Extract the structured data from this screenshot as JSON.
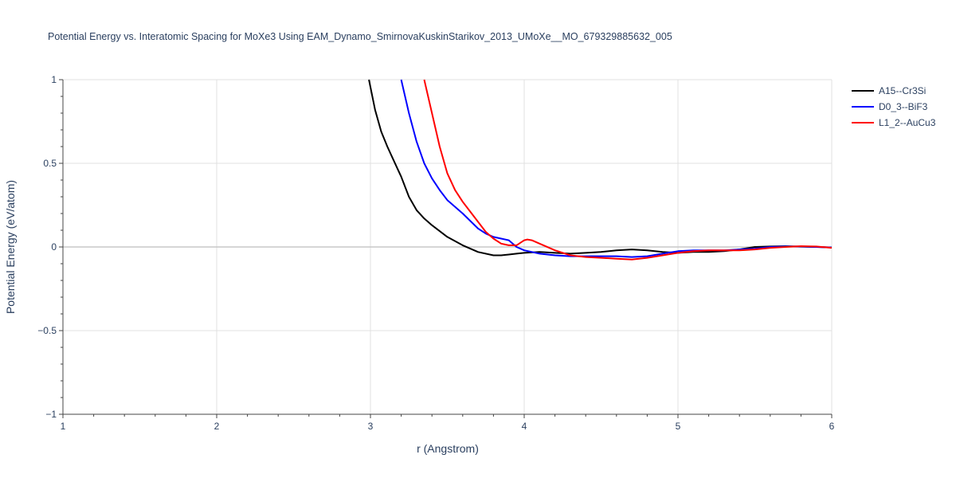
{
  "chart_data": {
    "type": "line",
    "title": "Potential Energy vs. Interatomic Spacing for MoXe3 Using EAM_Dynamo_SmirnovaKuskinStarikov_2013_UMoXe__MO_679329885632_005",
    "xlabel": "r (Angstrom)",
    "ylabel": "Potential Energy (eV/atom)",
    "xlim": [
      1,
      6
    ],
    "ylim": [
      -1,
      1
    ],
    "xticks": [
      1,
      2,
      3,
      4,
      5,
      6
    ],
    "xtick_labels": [
      "1",
      "2",
      "3",
      "4",
      "5",
      "6"
    ],
    "yticks": [
      -1,
      -0.5,
      0,
      0.5,
      1
    ],
    "ytick_labels": [
      "−1",
      "−0.5",
      "0",
      "0.5",
      "1"
    ],
    "grid": true,
    "legend_position": "top-right",
    "series": [
      {
        "name": "A15--Cr3Si",
        "color": "#000000",
        "x": [
          2.99,
          3.03,
          3.07,
          3.11,
          3.15,
          3.2,
          3.25,
          3.3,
          3.35,
          3.4,
          3.5,
          3.6,
          3.7,
          3.8,
          3.85,
          3.9,
          3.95,
          4.0,
          4.1,
          4.2,
          4.3,
          4.4,
          4.5,
          4.6,
          4.7,
          4.8,
          4.9,
          5.0,
          5.1,
          5.2,
          5.3,
          5.4,
          5.5,
          5.6,
          5.7,
          5.8,
          5.9,
          6.0
        ],
        "y": [
          1.0,
          0.82,
          0.69,
          0.6,
          0.52,
          0.42,
          0.3,
          0.22,
          0.17,
          0.13,
          0.06,
          0.01,
          -0.03,
          -0.05,
          -0.05,
          -0.045,
          -0.04,
          -0.035,
          -0.03,
          -0.035,
          -0.04,
          -0.035,
          -0.03,
          -0.02,
          -0.015,
          -0.02,
          -0.03,
          -0.035,
          -0.03,
          -0.03,
          -0.025,
          -0.015,
          0.0,
          0.003,
          0.005,
          0.002,
          0.0,
          -0.003
        ]
      },
      {
        "name": "D0_3--BiF3",
        "color": "#0000ff",
        "x": [
          3.2,
          3.25,
          3.3,
          3.35,
          3.4,
          3.45,
          3.5,
          3.6,
          3.7,
          3.75,
          3.8,
          3.85,
          3.9,
          3.95,
          4.0,
          4.1,
          4.2,
          4.3,
          4.4,
          4.5,
          4.6,
          4.7,
          4.8,
          4.9,
          5.0,
          5.1,
          5.2,
          5.3,
          5.4,
          5.5,
          5.6,
          5.7,
          5.8,
          5.9,
          6.0
        ],
        "y": [
          1.0,
          0.8,
          0.63,
          0.5,
          0.41,
          0.34,
          0.28,
          0.2,
          0.11,
          0.08,
          0.06,
          0.05,
          0.04,
          0.0,
          -0.02,
          -0.04,
          -0.05,
          -0.055,
          -0.055,
          -0.055,
          -0.055,
          -0.06,
          -0.055,
          -0.04,
          -0.025,
          -0.02,
          -0.02,
          -0.02,
          -0.015,
          -0.01,
          0.0,
          0.003,
          0.003,
          0.0,
          -0.003
        ]
      },
      {
        "name": "L1_2--AuCu3",
        "color": "#ff0000",
        "x": [
          3.35,
          3.4,
          3.45,
          3.5,
          3.55,
          3.6,
          3.7,
          3.75,
          3.8,
          3.85,
          3.9,
          3.95,
          4.0,
          4.02,
          4.05,
          4.1,
          4.2,
          4.3,
          4.4,
          4.5,
          4.6,
          4.7,
          4.8,
          4.9,
          5.0,
          5.1,
          5.2,
          5.3,
          5.4,
          5.5,
          5.6,
          5.7,
          5.8,
          5.9,
          6.0
        ],
        "y": [
          1.0,
          0.8,
          0.6,
          0.44,
          0.34,
          0.27,
          0.15,
          0.09,
          0.05,
          0.02,
          0.01,
          0.01,
          0.04,
          0.045,
          0.04,
          0.02,
          -0.02,
          -0.05,
          -0.06,
          -0.065,
          -0.07,
          -0.075,
          -0.065,
          -0.05,
          -0.035,
          -0.025,
          -0.02,
          -0.02,
          -0.02,
          -0.015,
          -0.005,
          0.0,
          0.005,
          0.003,
          -0.005
        ]
      }
    ]
  }
}
